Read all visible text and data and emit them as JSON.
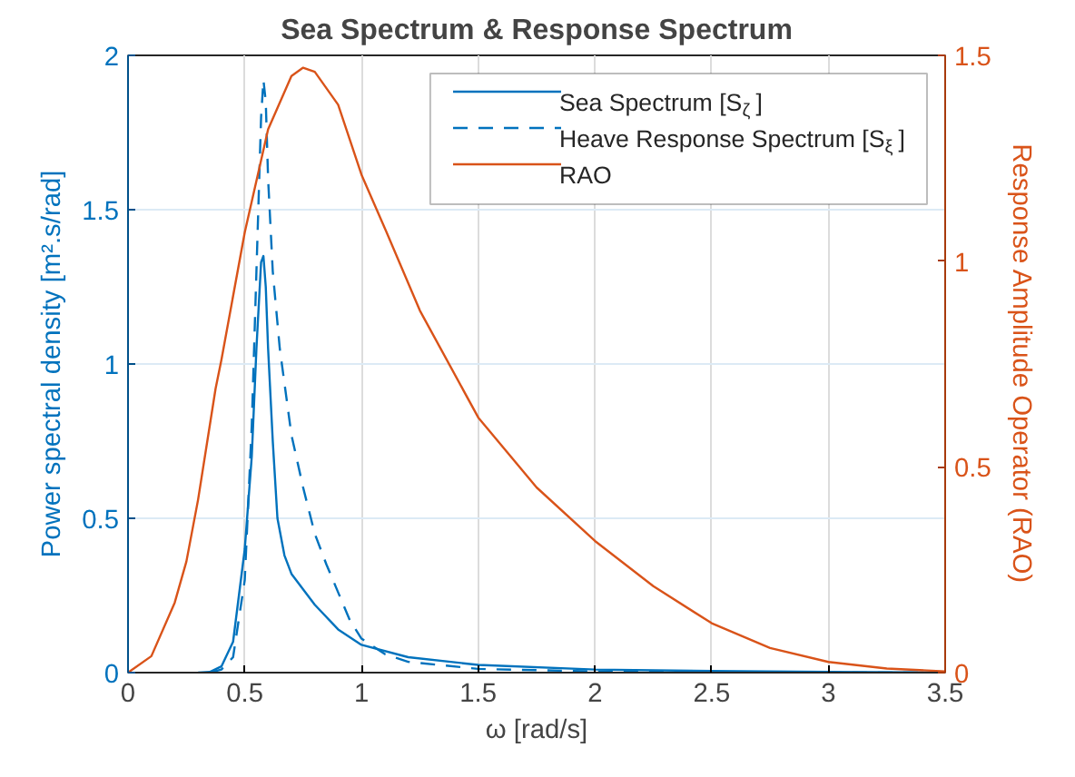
{
  "chart_data": {
    "type": "line",
    "title": "Sea Spectrum & Response Spectrum",
    "xlabel": "ω [rad/s]",
    "ylabel": "Power spectral density [m².s/rad]",
    "y2label": "Response Amplitude Operator (RAO)",
    "xlim": [
      0,
      3.5
    ],
    "xticks": [
      0,
      0.5,
      1,
      1.5,
      2,
      2.5,
      3,
      3.5
    ],
    "ylim": [
      0,
      2
    ],
    "yticks": [
      0,
      0.5,
      1,
      1.5,
      2
    ],
    "y2lim": [
      0,
      1.5
    ],
    "y2ticks": [
      0,
      0.5,
      1,
      1.5
    ],
    "grid": true,
    "legend": "top right",
    "marker": "none",
    "series": [
      {
        "name": "Sea Spectrum [S$_{ζ}$]",
        "color": "#0072bd",
        "line_style": "solid",
        "x": [
          0.3,
          0.35,
          0.4,
          0.45,
          0.5,
          0.53,
          0.55,
          0.57,
          0.58,
          0.59,
          0.6,
          0.62,
          0.64,
          0.67,
          0.7,
          0.8,
          0.9,
          1.0,
          1.2,
          1.5,
          2.0,
          2.5,
          3.0,
          3.5
        ],
        "values": [
          0,
          0.002,
          0.02,
          0.1,
          0.4,
          0.7,
          1.05,
          1.33,
          1.35,
          1.25,
          1.05,
          0.75,
          0.5,
          0.38,
          0.32,
          0.22,
          0.14,
          0.09,
          0.05,
          0.025,
          0.01,
          0.005,
          0.002,
          0.001
        ]
      },
      {
        "name": "Heave Response Spectrum [S$_{ξ}$]",
        "color": "#0072bd",
        "line_style": "dashed",
        "x": [
          0.35,
          0.4,
          0.45,
          0.5,
          0.53,
          0.55,
          0.57,
          0.58,
          0.59,
          0.6,
          0.62,
          0.65,
          0.7,
          0.75,
          0.8,
          0.85,
          0.9,
          0.95,
          1.0,
          1.1,
          1.2,
          1.5,
          2.0,
          2.5,
          3.0,
          3.5
        ],
        "values": [
          0,
          0.01,
          0.05,
          0.3,
          0.8,
          1.3,
          1.8,
          1.92,
          1.85,
          1.6,
          1.3,
          1.05,
          0.77,
          0.6,
          0.45,
          0.35,
          0.26,
          0.17,
          0.11,
          0.06,
          0.035,
          0.012,
          0.004,
          0.001,
          0,
          0
        ]
      },
      {
        "name": "RAO",
        "color": "#d95319",
        "line_style": "solid",
        "axis": "y2",
        "x": [
          0,
          0.1,
          0.2,
          0.25,
          0.3,
          0.375,
          0.4,
          0.5,
          0.6,
          0.7,
          0.75,
          0.8,
          0.9,
          1.0,
          1.1,
          1.25,
          1.5,
          1.75,
          2.0,
          2.25,
          2.5,
          2.75,
          3.0,
          3.25,
          3.5
        ],
        "values": [
          0,
          0.04,
          0.17,
          0.27,
          0.42,
          0.69,
          0.76,
          1.07,
          1.32,
          1.45,
          1.47,
          1.46,
          1.38,
          1.21,
          1.08,
          0.88,
          0.62,
          0.45,
          0.32,
          0.21,
          0.12,
          0.06,
          0.026,
          0.01,
          0.003
        ]
      }
    ]
  }
}
